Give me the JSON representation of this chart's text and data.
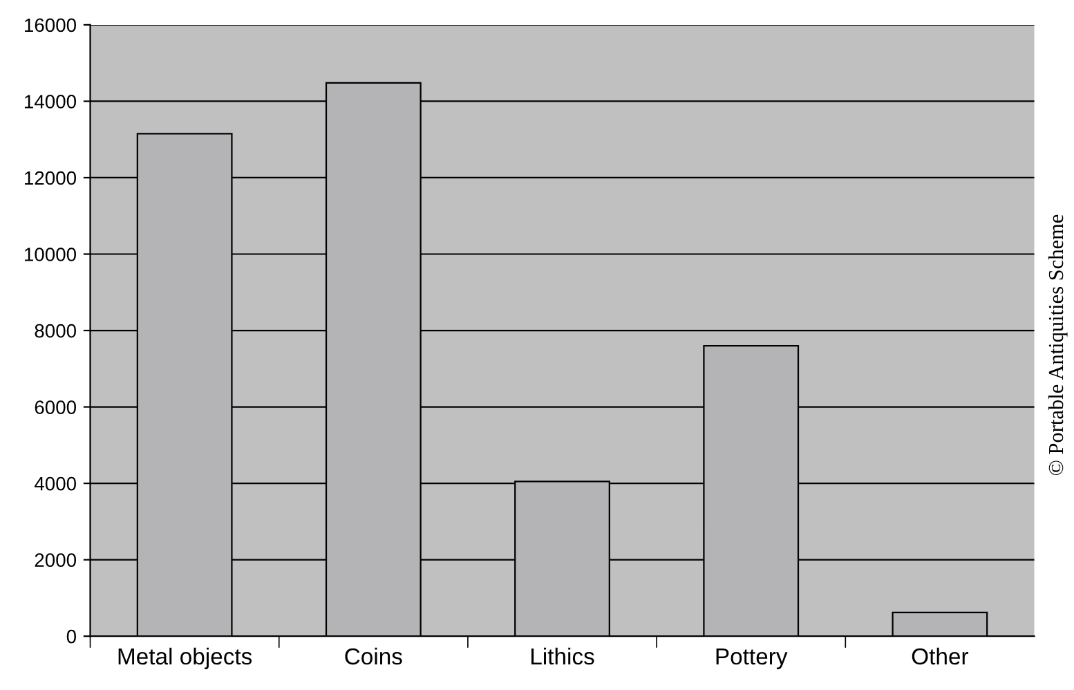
{
  "chart_data": {
    "type": "bar",
    "categories": [
      "Metal objects",
      "Coins",
      "Lithics",
      "Pottery",
      "Other"
    ],
    "values": [
      13150,
      14480,
      4050,
      7600,
      620
    ],
    "color": "#b4b4b6",
    "ylim": [
      0,
      16000
    ],
    "yticks": [
      0,
      2000,
      4000,
      6000,
      8000,
      10000,
      12000,
      14000,
      16000
    ],
    "grid": "y",
    "annotations": [
      "© Portable Antiquities Scheme"
    ]
  }
}
